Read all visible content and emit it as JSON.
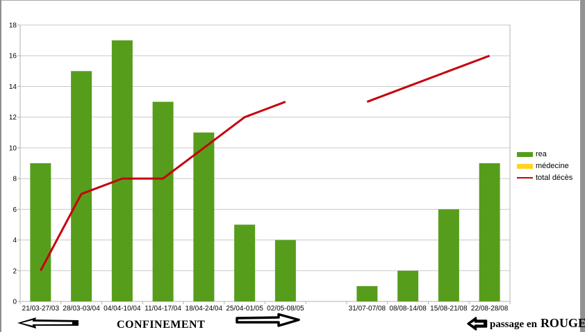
{
  "chart_data": {
    "type": "bar",
    "title": "",
    "xlabel": "",
    "ylabel": "",
    "categories": [
      "21/03-27/03",
      "28/03-03/04",
      "04/04-10/04",
      "11/04-17/04",
      "18/04-24/04",
      "25/04-01/05",
      "02/05-08/05",
      "",
      "31/07-07/08",
      "08/08-14/08",
      "15/08-21/08",
      "22/08-28/08"
    ],
    "series": [
      {
        "name": "rea",
        "type": "bar",
        "color": "#579D1C",
        "values": [
          9,
          15,
          17,
          13,
          11,
          5,
          4,
          null,
          1,
          2,
          6,
          9
        ]
      },
      {
        "name": "médecine",
        "type": "bar",
        "color": "#FFD320",
        "values": [
          0,
          0,
          0,
          0,
          0,
          0,
          0,
          null,
          0,
          0,
          0,
          0
        ]
      },
      {
        "name": "total décès",
        "type": "line",
        "color": "#C5000B",
        "values": [
          2,
          7,
          8,
          8,
          10,
          12,
          13,
          null,
          13,
          14,
          15,
          16
        ]
      }
    ],
    "ylim": [
      0,
      18
    ],
    "yticks": [
      0,
      2,
      4,
      6,
      8,
      10,
      12,
      14,
      16,
      18
    ],
    "grid": true,
    "legend_position": "right",
    "colors": {
      "gridline": "#c9c9c9",
      "axis": "#b3b3b3",
      "text": "#000000"
    }
  },
  "annotations": {
    "confinement": "CONFINEMENT",
    "passage_prefix": "passage en",
    "passage_emph": "ROUGE"
  }
}
